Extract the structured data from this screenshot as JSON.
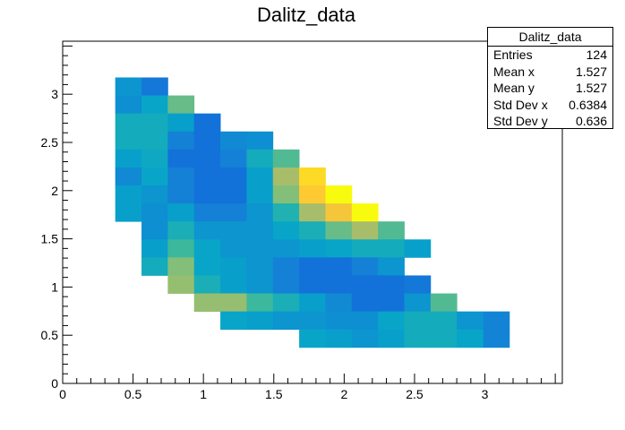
{
  "chart_data": {
    "type": "heatmap",
    "title": "Dalitz_data",
    "xlabel": "",
    "ylabel": "",
    "xlim": [
      0,
      3.55
    ],
    "ylim": [
      0,
      3.55
    ],
    "x_ticks": [
      0,
      0.5,
      1,
      1.5,
      2,
      2.5,
      3
    ],
    "x_tick_labels": [
      "0",
      "0.5",
      "1",
      "1.5",
      "2",
      "2.5",
      "3"
    ],
    "y_ticks": [
      0,
      0.5,
      1,
      1.5,
      2,
      2.5,
      3
    ],
    "y_tick_labels": [
      "0",
      "0.5",
      "1",
      "1.5",
      "2",
      "2.5",
      "3"
    ],
    "bin_width": 0.1867,
    "x_min": 0,
    "y_min": 0,
    "colormap": [
      "#352a87",
      "#0f5cdd",
      "#1481d6",
      "#06a4ca",
      "#2eb7a4",
      "#87bf77",
      "#d1bb59",
      "#fec832",
      "#f9fb0e"
    ],
    "grid": false,
    "legend": "stats box top-right",
    "cells": [
      {
        "ix": 2,
        "iy": 16,
        "v": 0.32
      },
      {
        "ix": 3,
        "iy": 16,
        "v": 0.22
      },
      {
        "ix": 2,
        "iy": 15,
        "v": 0.3
      },
      {
        "ix": 3,
        "iy": 15,
        "v": 0.38
      },
      {
        "ix": 4,
        "iy": 15,
        "v": 0.58
      },
      {
        "ix": 2,
        "iy": 14,
        "v": 0.42
      },
      {
        "ix": 3,
        "iy": 14,
        "v": 0.42
      },
      {
        "ix": 4,
        "iy": 14,
        "v": 0.36
      },
      {
        "ix": 5,
        "iy": 14,
        "v": 0.2
      },
      {
        "ix": 2,
        "iy": 13,
        "v": 0.42
      },
      {
        "ix": 3,
        "iy": 13,
        "v": 0.42
      },
      {
        "ix": 4,
        "iy": 13,
        "v": 0.25
      },
      {
        "ix": 5,
        "iy": 13,
        "v": 0.2
      },
      {
        "ix": 6,
        "iy": 13,
        "v": 0.28
      },
      {
        "ix": 7,
        "iy": 13,
        "v": 0.3
      },
      {
        "ix": 2,
        "iy": 12,
        "v": 0.36
      },
      {
        "ix": 3,
        "iy": 12,
        "v": 0.4
      },
      {
        "ix": 4,
        "iy": 12,
        "v": 0.2
      },
      {
        "ix": 5,
        "iy": 12,
        "v": 0.2
      },
      {
        "ix": 6,
        "iy": 12,
        "v": 0.25
      },
      {
        "ix": 7,
        "iy": 12,
        "v": 0.42
      },
      {
        "ix": 8,
        "iy": 12,
        "v": 0.55
      },
      {
        "ix": 2,
        "iy": 11,
        "v": 0.28
      },
      {
        "ix": 3,
        "iy": 11,
        "v": 0.38
      },
      {
        "ix": 4,
        "iy": 11,
        "v": 0.25
      },
      {
        "ix": 5,
        "iy": 11,
        "v": 0.2
      },
      {
        "ix": 6,
        "iy": 11,
        "v": 0.2
      },
      {
        "ix": 7,
        "iy": 11,
        "v": 0.36
      },
      {
        "ix": 8,
        "iy": 11,
        "v": 0.68
      },
      {
        "ix": 9,
        "iy": 11,
        "v": 0.92
      },
      {
        "ix": 2,
        "iy": 10,
        "v": 0.36
      },
      {
        "ix": 3,
        "iy": 10,
        "v": 0.32
      },
      {
        "ix": 4,
        "iy": 10,
        "v": 0.25
      },
      {
        "ix": 5,
        "iy": 10,
        "v": 0.2
      },
      {
        "ix": 6,
        "iy": 10,
        "v": 0.2
      },
      {
        "ix": 7,
        "iy": 10,
        "v": 0.36
      },
      {
        "ix": 8,
        "iy": 10,
        "v": 0.62
      },
      {
        "ix": 9,
        "iy": 10,
        "v": 0.88
      },
      {
        "ix": 10,
        "iy": 10,
        "v": 1.0
      },
      {
        "ix": 2,
        "iy": 9,
        "v": 0.36
      },
      {
        "ix": 3,
        "iy": 9,
        "v": 0.3
      },
      {
        "ix": 4,
        "iy": 9,
        "v": 0.36
      },
      {
        "ix": 5,
        "iy": 9,
        "v": 0.25
      },
      {
        "ix": 6,
        "iy": 9,
        "v": 0.25
      },
      {
        "ix": 7,
        "iy": 9,
        "v": 0.32
      },
      {
        "ix": 8,
        "iy": 9,
        "v": 0.46
      },
      {
        "ix": 9,
        "iy": 9,
        "v": 0.68
      },
      {
        "ix": 10,
        "iy": 9,
        "v": 0.85
      },
      {
        "ix": 11,
        "iy": 9,
        "v": 1.0
      },
      {
        "ix": 3,
        "iy": 8,
        "v": 0.3
      },
      {
        "ix": 4,
        "iy": 8,
        "v": 0.44
      },
      {
        "ix": 5,
        "iy": 8,
        "v": 0.32
      },
      {
        "ix": 6,
        "iy": 8,
        "v": 0.32
      },
      {
        "ix": 7,
        "iy": 8,
        "v": 0.32
      },
      {
        "ix": 8,
        "iy": 8,
        "v": 0.38
      },
      {
        "ix": 9,
        "iy": 8,
        "v": 0.44
      },
      {
        "ix": 10,
        "iy": 8,
        "v": 0.58
      },
      {
        "ix": 11,
        "iy": 8,
        "v": 0.68
      },
      {
        "ix": 12,
        "iy": 8,
        "v": 0.55
      },
      {
        "ix": 3,
        "iy": 7,
        "v": 0.36
      },
      {
        "ix": 4,
        "iy": 7,
        "v": 0.52
      },
      {
        "ix": 5,
        "iy": 7,
        "v": 0.38
      },
      {
        "ix": 6,
        "iy": 7,
        "v": 0.32
      },
      {
        "ix": 7,
        "iy": 7,
        "v": 0.32
      },
      {
        "ix": 8,
        "iy": 7,
        "v": 0.32
      },
      {
        "ix": 9,
        "iy": 7,
        "v": 0.36
      },
      {
        "ix": 10,
        "iy": 7,
        "v": 0.38
      },
      {
        "ix": 11,
        "iy": 7,
        "v": 0.42
      },
      {
        "ix": 12,
        "iy": 7,
        "v": 0.42
      },
      {
        "ix": 13,
        "iy": 7,
        "v": 0.36
      },
      {
        "ix": 3,
        "iy": 6,
        "v": 0.42
      },
      {
        "ix": 4,
        "iy": 6,
        "v": 0.62
      },
      {
        "ix": 5,
        "iy": 6,
        "v": 0.38
      },
      {
        "ix": 6,
        "iy": 6,
        "v": 0.36
      },
      {
        "ix": 7,
        "iy": 6,
        "v": 0.32
      },
      {
        "ix": 8,
        "iy": 6,
        "v": 0.25
      },
      {
        "ix": 9,
        "iy": 6,
        "v": 0.2
      },
      {
        "ix": 10,
        "iy": 6,
        "v": 0.2
      },
      {
        "ix": 11,
        "iy": 6,
        "v": 0.25
      },
      {
        "ix": 12,
        "iy": 6,
        "v": 0.32
      },
      {
        "ix": 4,
        "iy": 5,
        "v": 0.65
      },
      {
        "ix": 5,
        "iy": 5,
        "v": 0.44
      },
      {
        "ix": 6,
        "iy": 5,
        "v": 0.36
      },
      {
        "ix": 7,
        "iy": 5,
        "v": 0.32
      },
      {
        "ix": 8,
        "iy": 5,
        "v": 0.25
      },
      {
        "ix": 9,
        "iy": 5,
        "v": 0.2
      },
      {
        "ix": 10,
        "iy": 5,
        "v": 0.2
      },
      {
        "ix": 11,
        "iy": 5,
        "v": 0.2
      },
      {
        "ix": 12,
        "iy": 5,
        "v": 0.2
      },
      {
        "ix": 13,
        "iy": 5,
        "v": 0.22
      },
      {
        "ix": 5,
        "iy": 4,
        "v": 0.65
      },
      {
        "ix": 6,
        "iy": 4,
        "v": 0.65
      },
      {
        "ix": 7,
        "iy": 4,
        "v": 0.52
      },
      {
        "ix": 8,
        "iy": 4,
        "v": 0.44
      },
      {
        "ix": 9,
        "iy": 4,
        "v": 0.36
      },
      {
        "ix": 10,
        "iy": 4,
        "v": 0.28
      },
      {
        "ix": 11,
        "iy": 4,
        "v": 0.2
      },
      {
        "ix": 12,
        "iy": 4,
        "v": 0.2
      },
      {
        "ix": 13,
        "iy": 4,
        "v": 0.32
      },
      {
        "ix": 14,
        "iy": 4,
        "v": 0.55
      },
      {
        "ix": 6,
        "iy": 3,
        "v": 0.38
      },
      {
        "ix": 7,
        "iy": 3,
        "v": 0.36
      },
      {
        "ix": 8,
        "iy": 3,
        "v": 0.32
      },
      {
        "ix": 9,
        "iy": 3,
        "v": 0.32
      },
      {
        "ix": 10,
        "iy": 3,
        "v": 0.3
      },
      {
        "ix": 11,
        "iy": 3,
        "v": 0.3
      },
      {
        "ix": 12,
        "iy": 3,
        "v": 0.38
      },
      {
        "ix": 13,
        "iy": 3,
        "v": 0.42
      },
      {
        "ix": 14,
        "iy": 3,
        "v": 0.42
      },
      {
        "ix": 15,
        "iy": 3,
        "v": 0.32
      },
      {
        "ix": 16,
        "iy": 3,
        "v": 0.26
      },
      {
        "ix": 9,
        "iy": 2,
        "v": 0.38
      },
      {
        "ix": 10,
        "iy": 2,
        "v": 0.36
      },
      {
        "ix": 11,
        "iy": 2,
        "v": 0.32
      },
      {
        "ix": 12,
        "iy": 2,
        "v": 0.36
      },
      {
        "ix": 13,
        "iy": 2,
        "v": 0.42
      },
      {
        "ix": 14,
        "iy": 2,
        "v": 0.42
      },
      {
        "ix": 15,
        "iy": 2,
        "v": 0.38
      },
      {
        "ix": 16,
        "iy": 2,
        "v": 0.26
      }
    ]
  },
  "stats": {
    "title": "Dalitz_data",
    "rows": [
      {
        "label": "Entries",
        "value": "124"
      },
      {
        "label": "Mean x",
        "value": "1.527"
      },
      {
        "label": "Mean y",
        "value": "1.527"
      },
      {
        "label": "Std Dev x",
        "value": "0.6384"
      },
      {
        "label": "Std Dev y",
        "value": "0.636"
      }
    ]
  }
}
